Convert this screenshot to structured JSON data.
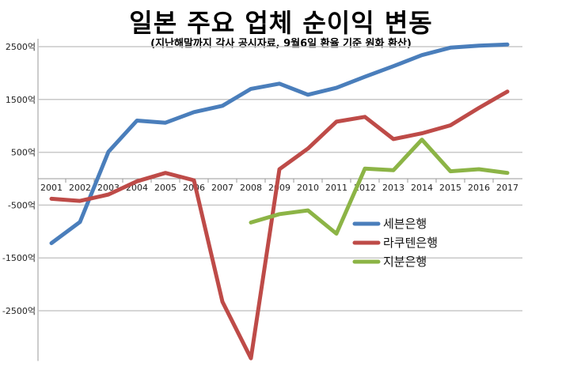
{
  "chart_data": {
    "type": "line",
    "title": "일본 주요 업체 순이익 변동",
    "subtitle": "(지난해말까지 각사 공시자료, 9월6일 환율 기준 원화 환산)",
    "categories": [
      "2001",
      "2002",
      "2003",
      "2004",
      "2005",
      "2006",
      "2007",
      "2008",
      "2009",
      "2010",
      "2011",
      "2012",
      "2013",
      "2014",
      "2015",
      "2016",
      "2017"
    ],
    "yticks": [
      2500,
      1500,
      500,
      -500,
      -1500,
      -2500
    ],
    "ytick_labels": [
      "2500억",
      "1500억",
      "500억",
      "-500억",
      "-1500억",
      "-2500억"
    ],
    "ylim": [
      -3450,
      2650
    ],
    "grid": true,
    "legend_position": "right-middle",
    "series": [
      {
        "name": "세븐은행",
        "color": "#4a7ebb",
        "values": [
          -1220,
          -820,
          510,
          1100,
          1060,
          1260,
          1380,
          1700,
          1800,
          1590,
          1720,
          1930,
          2130,
          2340,
          2480,
          2520,
          2540
        ]
      },
      {
        "name": "라쿠텐은행",
        "color": "#be4b48",
        "values": [
          -380,
          -420,
          -300,
          -50,
          110,
          -30,
          -2330,
          -3400,
          180,
          570,
          1080,
          1170,
          750,
          860,
          1010,
          1340,
          1650
        ]
      },
      {
        "name": "지분은행",
        "color": "#8cb446",
        "values": [
          null,
          null,
          null,
          null,
          null,
          null,
          null,
          -830,
          -670,
          -600,
          -1040,
          190,
          160,
          740,
          140,
          180,
          110
        ]
      }
    ]
  }
}
